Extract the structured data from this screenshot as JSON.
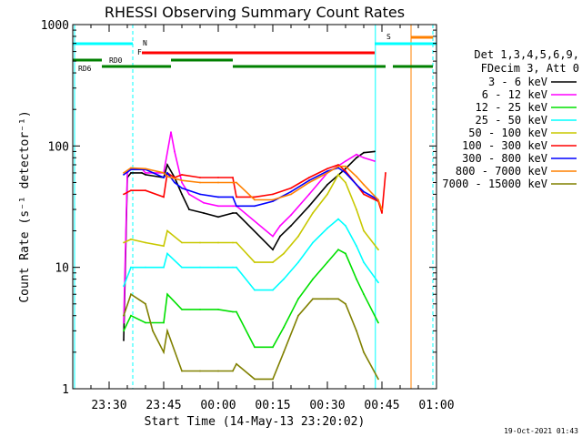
{
  "chart_data": {
    "type": "line",
    "title": "RHESSI Observing Summary Count Rates",
    "xlabel": "Start Time (14-May-13 23:20:02)",
    "ylabel": "Count Rate (s⁻¹ detector⁻¹)",
    "y_scale": "log",
    "ylim": [
      1,
      1000
    ],
    "xlim_minutes": [
      0,
      100
    ],
    "x_ticks": [
      {
        "m": 10,
        "label": "23:30"
      },
      {
        "m": 25,
        "label": "23:45"
      },
      {
        "m": 40,
        "label": "00:00"
      },
      {
        "m": 55,
        "label": "00:15"
      },
      {
        "m": 70,
        "label": "00:30"
      },
      {
        "m": 85,
        "label": "00:45"
      },
      {
        "m": 100,
        "label": "01:00"
      }
    ],
    "y_ticks": [
      {
        "v": 1,
        "label": "1"
      },
      {
        "v": 10,
        "label": "10"
      },
      {
        "v": 100,
        "label": "100"
      },
      {
        "v": 1000,
        "label": "1000"
      }
    ],
    "legend_header": [
      "Det 1,3,4,5,6,9,",
      "FDecim 3, Att 0"
    ],
    "legend_position": "right",
    "series": [
      {
        "name": "3 - 6 keV",
        "color": "#000000",
        "x": [
          14,
          15,
          16,
          19,
          20,
          25,
          26,
          28,
          30,
          32,
          36,
          40,
          44,
          45,
          55,
          57,
          60,
          65,
          70,
          75,
          78,
          80,
          83,
          84
        ],
        "y": [
          2.5,
          55,
          60,
          60,
          58,
          55,
          70,
          55,
          40,
          30,
          28,
          26,
          28,
          28,
          14,
          18,
          22,
          32,
          48,
          65,
          80,
          88,
          90,
          null
        ]
      },
      {
        "name": "6 - 12 keV",
        "color": "#ff00ff",
        "x": [
          14,
          15,
          16,
          19,
          20,
          25,
          27,
          28,
          30,
          32,
          36,
          40,
          44,
          45,
          55,
          57,
          60,
          65,
          70,
          75,
          78,
          80,
          83,
          84
        ],
        "y": [
          3.5,
          60,
          65,
          65,
          60,
          60,
          130,
          90,
          50,
          40,
          34,
          32,
          32,
          32,
          18,
          22,
          27,
          40,
          60,
          75,
          85,
          80,
          75,
          null
        ]
      },
      {
        "name": "12 - 25 keV",
        "color": "#00e000",
        "x": [
          14,
          16,
          20,
          25,
          26,
          30,
          35,
          40,
          44,
          45,
          50,
          55,
          58,
          62,
          66,
          70,
          73,
          75,
          78,
          80,
          84,
          85
        ],
        "y": [
          3,
          4,
          3.5,
          3.5,
          6,
          4.5,
          4.5,
          4.5,
          4.3,
          4.3,
          2.2,
          2.2,
          3.2,
          5.5,
          8,
          11,
          14,
          13,
          8,
          6,
          3.5,
          null
        ]
      },
      {
        "name": "25 - 50 keV",
        "color": "#00ffff",
        "x": [
          14,
          16,
          20,
          25,
          26,
          30,
          35,
          40,
          44,
          45,
          50,
          55,
          58,
          62,
          66,
          70,
          73,
          75,
          78,
          80,
          84,
          85
        ],
        "y": [
          7,
          10,
          10,
          10,
          13,
          10,
          10,
          10,
          10,
          10,
          6.5,
          6.5,
          8,
          11,
          16,
          21,
          25,
          22,
          15,
          11,
          7.5,
          null
        ]
      },
      {
        "name": "50 - 100 keV",
        "color": "#c8c800",
        "x": [
          14,
          16,
          20,
          25,
          26,
          30,
          35,
          40,
          44,
          45,
          50,
          55,
          58,
          62,
          66,
          70,
          73,
          75,
          78,
          80,
          84,
          85
        ],
        "y": [
          16,
          17,
          16,
          15,
          20,
          16,
          16,
          16,
          16,
          16,
          11,
          11,
          13,
          18,
          28,
          40,
          58,
          50,
          30,
          20,
          14,
          null
        ]
      },
      {
        "name": "100 - 300 keV",
        "color": "#ff0000",
        "x": [
          14,
          16,
          20,
          25,
          26,
          28,
          30,
          35,
          40,
          44,
          45,
          50,
          55,
          60,
          65,
          70,
          73,
          75,
          78,
          80,
          84,
          85,
          86
        ],
        "y": [
          40,
          43,
          43,
          38,
          60,
          55,
          58,
          55,
          55,
          55,
          38,
          38,
          40,
          45,
          55,
          65,
          70,
          62,
          48,
          40,
          35,
          28,
          60
        ]
      },
      {
        "name": "300 - 800 keV",
        "color": "#0000ff",
        "x": [
          14,
          16,
          20,
          25,
          26,
          28,
          30,
          35,
          40,
          44,
          45,
          50,
          55,
          60,
          65,
          70,
          73,
          75,
          78,
          80,
          84,
          85
        ],
        "y": [
          58,
          64,
          64,
          55,
          60,
          50,
          45,
          40,
          38,
          38,
          32,
          32,
          35,
          42,
          52,
          62,
          66,
          60,
          48,
          42,
          36,
          null
        ]
      },
      {
        "name": "800 - 7000 keV",
        "color": "#ff8000",
        "x": [
          14,
          16,
          20,
          25,
          26,
          30,
          35,
          40,
          44,
          45,
          50,
          55,
          60,
          65,
          70,
          73,
          75,
          78,
          80,
          84,
          85
        ],
        "y": [
          60,
          66,
          65,
          60,
          56,
          52,
          50,
          50,
          50,
          50,
          36,
          36,
          40,
          50,
          60,
          68,
          68,
          56,
          48,
          36,
          30
        ]
      },
      {
        "name": "7000 - 15000 keV",
        "color": "#808000",
        "x": [
          14,
          16,
          20,
          22,
          25,
          26,
          30,
          35,
          40,
          44,
          45,
          50,
          55,
          58,
          62,
          66,
          70,
          73,
          75,
          78,
          80,
          84,
          85
        ],
        "y": [
          4,
          6,
          5,
          3,
          2,
          3,
          1.4,
          1.4,
          1.4,
          1.4,
          1.6,
          1.2,
          1.2,
          2,
          4,
          5.5,
          5.5,
          5.5,
          5,
          3,
          2,
          1.2,
          null
        ]
      }
    ],
    "flag_bars": [
      {
        "label": "N",
        "color": "#00ffff",
        "segments": [
          [
            0,
            16.5
          ],
          [
            83,
            100
          ]
        ]
      },
      {
        "label": "F",
        "color": "#ff0000",
        "segments": [
          [
            19,
            83
          ]
        ]
      },
      {
        "label": "S",
        "color": "#ff8000",
        "segments": [
          [
            93,
            99
          ]
        ]
      },
      {
        "label": "RD0",
        "color": "#008000",
        "segments": [
          [
            0,
            8
          ],
          [
            27,
            44
          ],
          [
            100,
            100
          ]
        ]
      },
      {
        "label": "RD6",
        "color": "#008000",
        "segments": [
          [
            8,
            27
          ],
          [
            44,
            86
          ],
          [
            88,
            99
          ]
        ]
      }
    ],
    "vlines": [
      {
        "m": 0.5,
        "color": "#00ffff",
        "style": "solid"
      },
      {
        "m": 16.5,
        "color": "#00ffff",
        "style": "dashed"
      },
      {
        "m": 83.2,
        "color": "#00ffff",
        "style": "solid"
      },
      {
        "m": 93,
        "color": "#ff8000",
        "style": "solid"
      },
      {
        "m": 99,
        "color": "#00ffff",
        "style": "dashed"
      }
    ],
    "timestamp": "19-Oct-2021 01:43"
  }
}
